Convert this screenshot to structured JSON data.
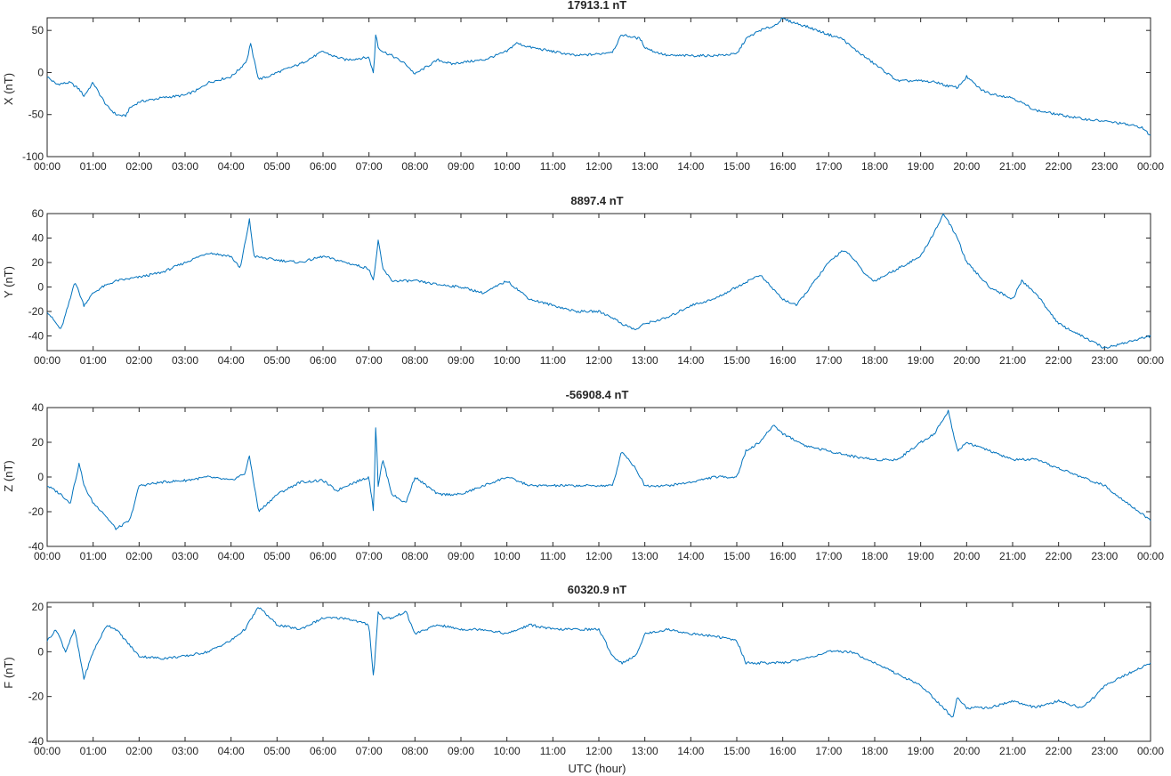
{
  "chart_data": [
    {
      "type": "line",
      "title": "17913.1 nT",
      "ylabel": "X (nT)",
      "xlabel": "",
      "ylim": [
        -100,
        65
      ],
      "yticks": [
        50,
        0,
        -50,
        -100
      ],
      "xticks": [
        "00:00",
        "01:00",
        "02:00",
        "03:00",
        "04:00",
        "05:00",
        "06:00",
        "07:00",
        "08:00",
        "09:00",
        "10:00",
        "11:00",
        "12:00",
        "13:00",
        "14:00",
        "15:00",
        "16:00",
        "17:00",
        "18:00",
        "19:00",
        "20:00",
        "21:00",
        "22:00",
        "23:00",
        "00:00"
      ],
      "grid": false,
      "color": "#0072bd",
      "series": [
        {
          "x": [
            0,
            0.2,
            0.5,
            0.7,
            0.8,
            1.0,
            1.1,
            1.3,
            1.5,
            1.7,
            1.8,
            2.0,
            2.5,
            3.0,
            3.3,
            3.5,
            4.0,
            4.2,
            4.35,
            4.42,
            4.5,
            4.6,
            4.8,
            5.0,
            5.5,
            6.0,
            6.2,
            6.5,
            7.0,
            7.1,
            7.15,
            7.2,
            7.3,
            7.5,
            7.8,
            8.0,
            8.2,
            8.5,
            8.8,
            9.0,
            9.5,
            10.0,
            10.2,
            10.5,
            11.0,
            11.5,
            12.0,
            12.3,
            12.5,
            12.9,
            13.0,
            13.2,
            13.5,
            14.0,
            14.5,
            15.0,
            15.2,
            15.5,
            15.8,
            16.0,
            16.2,
            16.5,
            17.0,
            17.3,
            17.5,
            18.0,
            18.5,
            19.0,
            19.4,
            19.5,
            19.8,
            20.0,
            20.3,
            20.5,
            21.0,
            21.5,
            22.0,
            22.5,
            23.0,
            23.3,
            23.5,
            23.8,
            24.0
          ],
          "values": [
            -5,
            -14,
            -12,
            -20,
            -28,
            -12,
            -22,
            -40,
            -50,
            -52,
            -42,
            -35,
            -30,
            -27,
            -20,
            -12,
            -5,
            5,
            15,
            35,
            15,
            -8,
            -5,
            0,
            10,
            25,
            20,
            15,
            18,
            -2,
            48,
            30,
            25,
            20,
            10,
            -2,
            5,
            15,
            10,
            12,
            15,
            25,
            35,
            30,
            25,
            20,
            22,
            25,
            45,
            40,
            30,
            25,
            20,
            20,
            20,
            22,
            40,
            50,
            55,
            64,
            60,
            55,
            45,
            40,
            30,
            10,
            -10,
            -10,
            -12,
            -15,
            -18,
            -5,
            -20,
            -25,
            -30,
            -45,
            -50,
            -55,
            -58,
            -60,
            -62,
            -65,
            -75
          ]
        }
      ]
    },
    {
      "type": "line",
      "title": "8897.4 nT",
      "ylabel": "Y (nT)",
      "xlabel": "",
      "ylim": [
        -52,
        60
      ],
      "yticks": [
        60,
        40,
        20,
        0,
        -20,
        -40
      ],
      "xticks": [
        "00:00",
        "01:00",
        "02:00",
        "03:00",
        "04:00",
        "05:00",
        "06:00",
        "07:00",
        "08:00",
        "09:00",
        "10:00",
        "11:00",
        "12:00",
        "13:00",
        "14:00",
        "15:00",
        "16:00",
        "17:00",
        "18:00",
        "19:00",
        "20:00",
        "21:00",
        "22:00",
        "23:00",
        "00:00"
      ],
      "grid": false,
      "color": "#0072bd",
      "series": [
        {
          "x": [
            0,
            0.3,
            0.5,
            0.6,
            0.8,
            1.0,
            1.2,
            1.5,
            2.0,
            2.5,
            3.0,
            3.5,
            4.0,
            4.2,
            4.4,
            4.5,
            5.0,
            5.5,
            6.0,
            6.5,
            7.0,
            7.1,
            7.2,
            7.3,
            7.5,
            8.0,
            8.5,
            9.0,
            9.5,
            10.0,
            10.5,
            11.0,
            11.5,
            12.0,
            12.3,
            12.5,
            12.8,
            13.0,
            13.5,
            14.0,
            14.5,
            15.0,
            15.5,
            16.0,
            16.3,
            16.5,
            17.0,
            17.3,
            17.5,
            17.8,
            18.0,
            18.5,
            19.0,
            19.3,
            19.5,
            19.8,
            20.0,
            20.5,
            21.0,
            21.2,
            21.5,
            22.0,
            22.5,
            23.0,
            23.5,
            24.0
          ],
          "values": [
            -20,
            -35,
            -10,
            5,
            -15,
            -5,
            0,
            5,
            8,
            12,
            20,
            28,
            25,
            15,
            55,
            25,
            22,
            20,
            25,
            20,
            15,
            5,
            38,
            15,
            5,
            5,
            2,
            0,
            -5,
            5,
            -10,
            -15,
            -20,
            -20,
            -25,
            -30,
            -35,
            -30,
            -25,
            -15,
            -10,
            0,
            10,
            -10,
            -15,
            -5,
            20,
            30,
            25,
            10,
            5,
            15,
            25,
            45,
            60,
            40,
            20,
            0,
            -10,
            5,
            -5,
            -30,
            -40,
            -50,
            -45,
            -40
          ]
        }
      ]
    },
    {
      "type": "line",
      "title": "-56908.4 nT",
      "ylabel": "Z (nT)",
      "xlabel": "",
      "ylim": [
        -40,
        40
      ],
      "yticks": [
        40,
        20,
        0,
        -20,
        -40
      ],
      "xticks": [
        "00:00",
        "01:00",
        "02:00",
        "03:00",
        "04:00",
        "05:00",
        "06:00",
        "07:00",
        "08:00",
        "09:00",
        "10:00",
        "11:00",
        "12:00",
        "13:00",
        "14:00",
        "15:00",
        "16:00",
        "17:00",
        "18:00",
        "19:00",
        "20:00",
        "21:00",
        "22:00",
        "23:00",
        "00:00"
      ],
      "grid": false,
      "color": "#0072bd",
      "series": [
        {
          "x": [
            0,
            0.3,
            0.5,
            0.7,
            0.8,
            1.0,
            1.2,
            1.5,
            1.8,
            2.0,
            2.5,
            3.0,
            3.5,
            4.0,
            4.3,
            4.4,
            4.6,
            5.0,
            5.5,
            6.0,
            6.3,
            6.5,
            7.0,
            7.1,
            7.15,
            7.2,
            7.3,
            7.5,
            7.8,
            8.0,
            8.5,
            9.0,
            9.5,
            10.0,
            10.5,
            11.0,
            11.5,
            12.0,
            12.3,
            12.5,
            12.8,
            13.0,
            13.5,
            14.0,
            14.5,
            15.0,
            15.2,
            15.5,
            15.8,
            16.0,
            16.5,
            17.0,
            17.5,
            18.0,
            18.5,
            19.0,
            19.3,
            19.6,
            19.8,
            20.0,
            20.5,
            21.0,
            21.5,
            22.0,
            22.5,
            23.0,
            23.5,
            24.0
          ],
          "values": [
            -5,
            -10,
            -15,
            8,
            -5,
            -15,
            -20,
            -30,
            -25,
            -5,
            -3,
            -2,
            0,
            -2,
            2,
            12,
            -20,
            -10,
            -3,
            -2,
            -8,
            -5,
            0,
            -20,
            32,
            -5,
            10,
            -10,
            -15,
            0,
            -10,
            -10,
            -5,
            0,
            -5,
            -5,
            -5,
            -5,
            -5,
            15,
            5,
            -5,
            -5,
            -3,
            0,
            0,
            15,
            20,
            30,
            25,
            18,
            15,
            12,
            10,
            10,
            20,
            25,
            38,
            15,
            20,
            15,
            10,
            10,
            5,
            0,
            -5,
            -15,
            -25
          ]
        }
      ]
    },
    {
      "type": "line",
      "title": "60320.9 nT",
      "ylabel": "F (nT)",
      "xlabel": "UTC (hour)",
      "ylim": [
        -40,
        22
      ],
      "yticks": [
        20,
        0,
        -20,
        -40
      ],
      "xticks": [
        "00:00",
        "01:00",
        "02:00",
        "03:00",
        "04:00",
        "05:00",
        "06:00",
        "07:00",
        "08:00",
        "09:00",
        "10:00",
        "11:00",
        "12:00",
        "13:00",
        "14:00",
        "15:00",
        "16:00",
        "17:00",
        "18:00",
        "19:00",
        "20:00",
        "21:00",
        "22:00",
        "23:00",
        "00:00"
      ],
      "grid": false,
      "color": "#0072bd",
      "series": [
        {
          "x": [
            0,
            0.2,
            0.4,
            0.6,
            0.8,
            1.0,
            1.3,
            1.5,
            2.0,
            2.5,
            3.0,
            3.5,
            4.0,
            4.3,
            4.6,
            5.0,
            5.5,
            6.0,
            6.5,
            7.0,
            7.1,
            7.2,
            7.3,
            7.5,
            7.8,
            8.0,
            8.5,
            9.0,
            9.5,
            10.0,
            10.5,
            11.0,
            11.5,
            12.0,
            12.3,
            12.5,
            12.8,
            13.0,
            13.5,
            14.0,
            14.5,
            15.0,
            15.2,
            15.5,
            16.0,
            16.5,
            17.0,
            17.5,
            18.0,
            18.5,
            19.0,
            19.5,
            19.7,
            19.8,
            20.0,
            20.5,
            21.0,
            21.5,
            22.0,
            22.5,
            22.8,
            23.0,
            23.5,
            24.0
          ],
          "values": [
            5,
            10,
            0,
            10,
            -12,
            0,
            12,
            10,
            -2,
            -3,
            -2,
            0,
            5,
            10,
            20,
            12,
            10,
            15,
            15,
            12,
            -12,
            18,
            15,
            15,
            18,
            8,
            12,
            10,
            10,
            8,
            12,
            10,
            10,
            10,
            -2,
            -5,
            -2,
            8,
            10,
            8,
            7,
            5,
            -5,
            -5,
            -5,
            -3,
            0,
            0,
            -5,
            -10,
            -15,
            -25,
            -30,
            -20,
            -25,
            -25,
            -22,
            -25,
            -22,
            -25,
            -20,
            -15,
            -10,
            -5
          ]
        }
      ]
    }
  ]
}
